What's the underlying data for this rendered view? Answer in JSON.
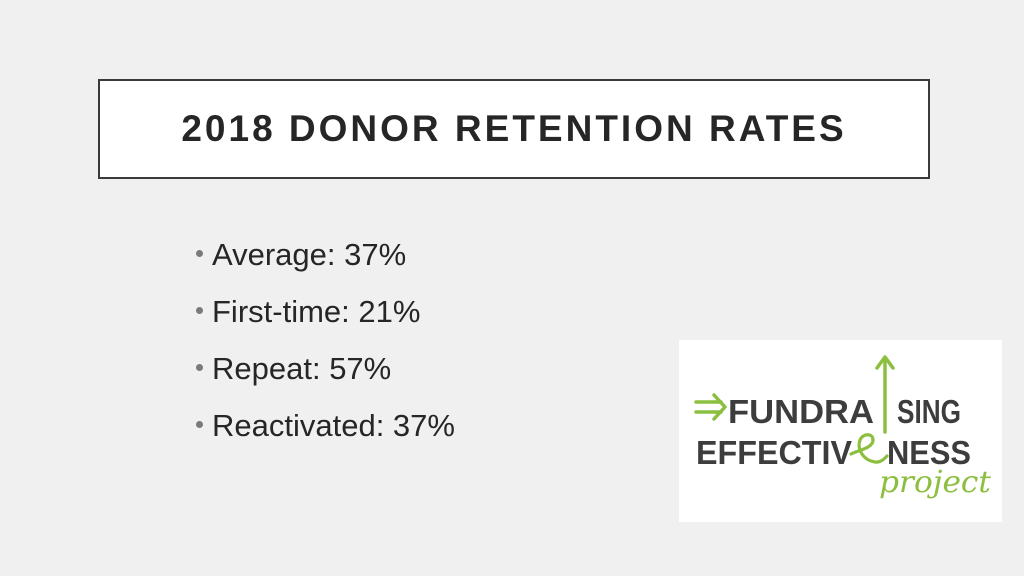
{
  "slide": {
    "title": "2018 DONOR RETENTION RATES",
    "bullets": [
      "Average:  37%",
      "First-time:  21%",
      "Repeat:  57%",
      "Reactivated:  37%"
    ]
  },
  "logo": {
    "line1_left": "FUNDRA",
    "line1_right": "SING",
    "line2_left": "EFFECTIV",
    "line2_right": "NESS",
    "script_word": "project",
    "colors": {
      "text": "#3d3d3d",
      "accent": "#8cbf3f"
    },
    "icons": [
      "double-arrow-icon",
      "up-arrow-icon"
    ]
  }
}
